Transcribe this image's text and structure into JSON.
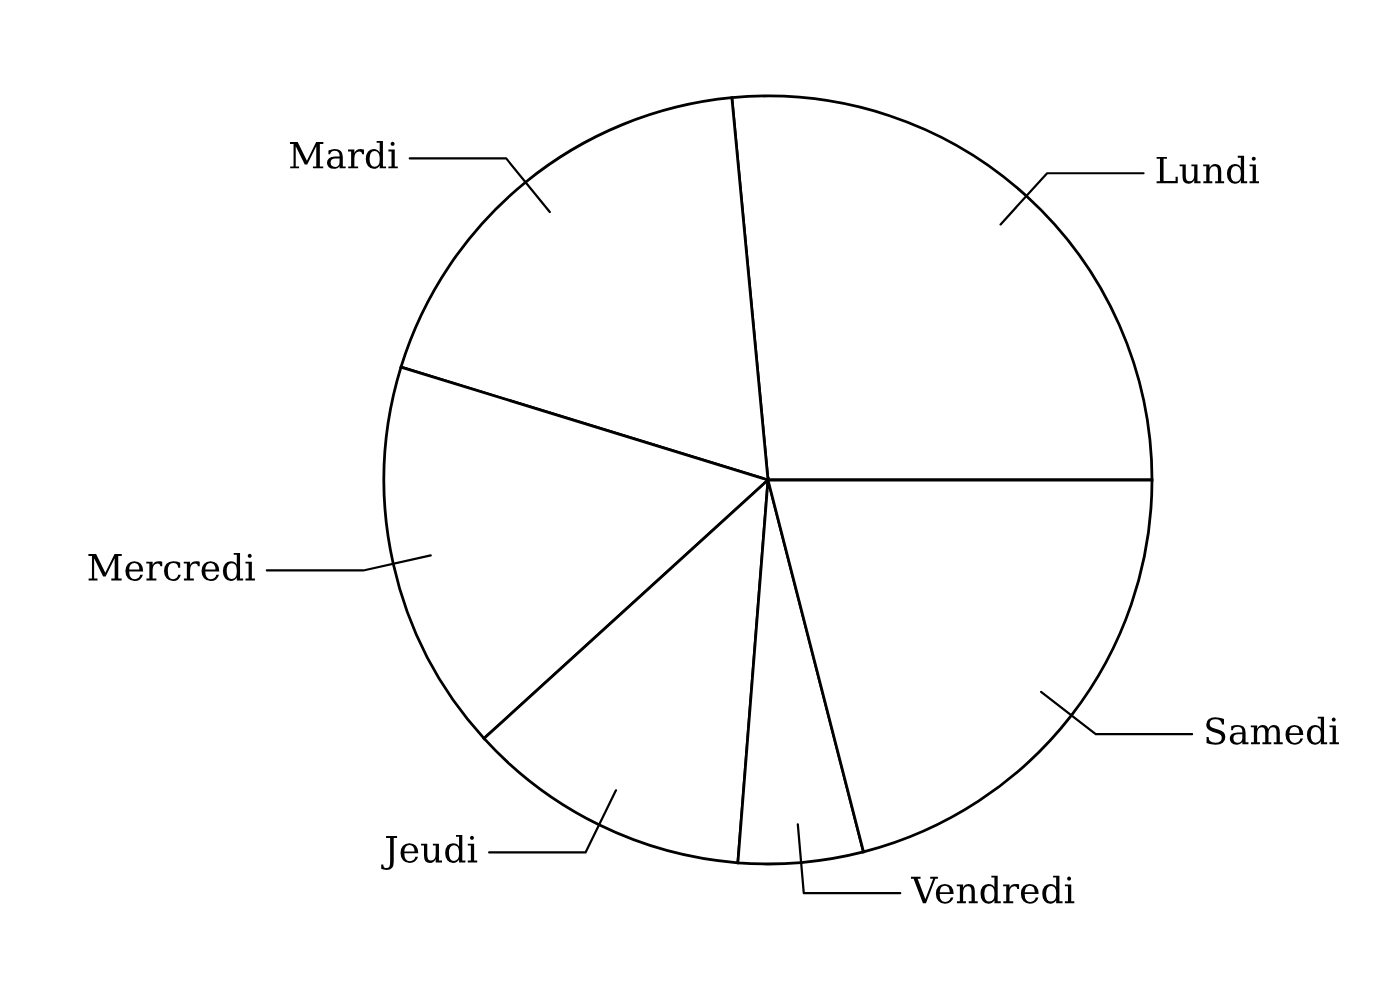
{
  "chart_data": {
    "type": "pie",
    "categories": [
      "Lundi",
      "Mardi",
      "Mercredi",
      "Jeudi",
      "Vendredi",
      "Samedi"
    ],
    "values": [
      26.5,
      18.75,
      16.5,
      12,
      5.25,
      21
    ],
    "colors": [
      "#ffffff",
      "#ffffff",
      "#ffffff",
      "#ffffff",
      "#ffffff",
      "#ffffff"
    ],
    "legend": false
  }
}
